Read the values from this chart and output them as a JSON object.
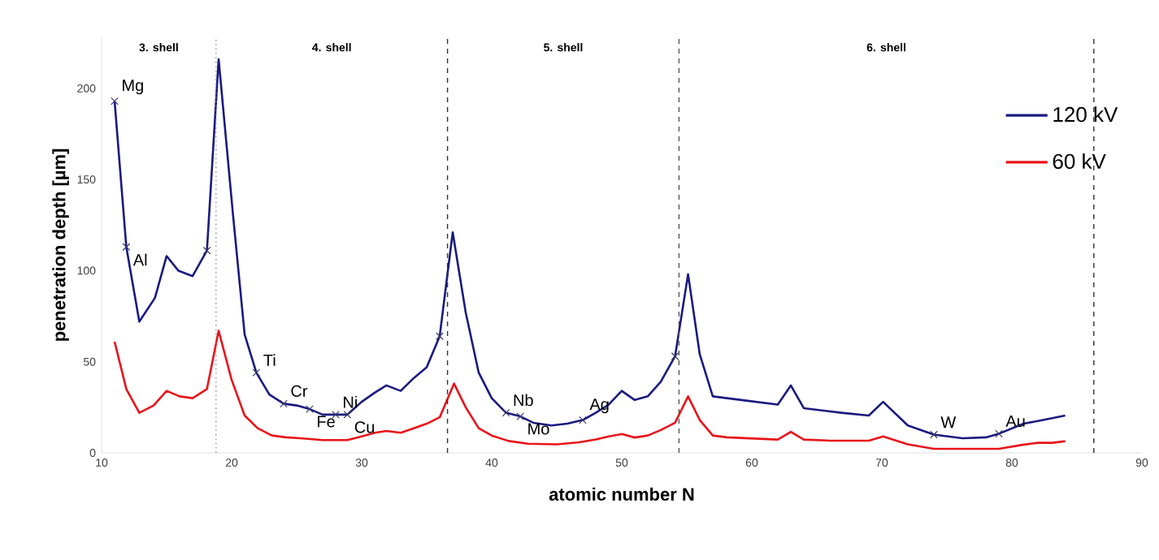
{
  "chart_data": {
    "type": "line",
    "xlabel": "atomic number N",
    "ylabel": "penetration depth  [µm]",
    "xlim": [
      10,
      90
    ],
    "xticks": [
      10,
      20,
      30,
      40,
      50,
      60,
      70,
      80,
      90
    ],
    "ylim": [
      0,
      228
    ],
    "yticks": [
      0,
      50,
      100,
      150,
      200
    ],
    "legend": "top right",
    "marker": "none",
    "line_style": "solid",
    "series": [
      {
        "name": "120 kV",
        "color": "#1a1a80",
        "x": [
          11,
          11.9,
          12.9,
          14.1,
          15,
          15.9,
          17,
          18.1,
          19,
          20.1,
          21,
          21.9,
          22.9,
          24,
          25,
          26,
          27,
          28,
          28.9,
          30,
          31,
          31.9,
          33,
          34,
          35,
          36,
          37,
          38,
          39,
          40,
          41.1,
          42.2,
          43.2,
          44.6,
          45.8,
          47,
          48,
          49,
          50,
          51,
          52,
          53,
          54.1,
          55.1,
          56,
          57,
          58.1,
          59.2,
          62,
          63,
          64,
          66.9,
          69,
          70.1,
          72,
          74,
          76.2,
          78,
          79,
          80.9,
          82,
          83.1,
          84.1
        ],
        "values": [
          193,
          113,
          72,
          85,
          108,
          100,
          97,
          111,
          216,
          131,
          65,
          44,
          32,
          27,
          26,
          24,
          21,
          21,
          21,
          28,
          33,
          37,
          34,
          41,
          47,
          64,
          121,
          77,
          44,
          30,
          22,
          20,
          16.5,
          15,
          16,
          18,
          22,
          26.5,
          34,
          29,
          31,
          39,
          53,
          98,
          54,
          31,
          30,
          29,
          26.5,
          37,
          24.5,
          22,
          20.5,
          28,
          15,
          10,
          8,
          8.5,
          10.5,
          16,
          17.5,
          19,
          20.5
        ]
      },
      {
        "name": "60 kV",
        "color": "#e8141a",
        "x": [
          11,
          11.9,
          12.9,
          14,
          15,
          16,
          17,
          18.1,
          19,
          20,
          21,
          22,
          23.1,
          24.2,
          25.3,
          27,
          28.9,
          30,
          31,
          31.9,
          33,
          34,
          35,
          36,
          37.1,
          38,
          39,
          40,
          41.3,
          42.8,
          45,
          46.7,
          48,
          49,
          50,
          51,
          52,
          53,
          54.1,
          55.1,
          56,
          57,
          58.1,
          62,
          63,
          64,
          66,
          69,
          70.1,
          72,
          74,
          76.2,
          79,
          80.9,
          82,
          83.1,
          84.1
        ],
        "values": [
          61,
          35,
          22,
          26,
          34,
          31,
          30,
          35,
          67,
          40,
          20.5,
          13.5,
          9.5,
          8.5,
          8,
          7,
          7,
          9,
          11,
          12,
          11,
          13.5,
          16,
          19.5,
          38,
          25,
          13.5,
          9.5,
          6.5,
          5,
          4.7,
          5.8,
          7.3,
          9,
          10.3,
          8.4,
          9.5,
          12.5,
          16.5,
          31,
          18,
          9.5,
          8.5,
          7.3,
          11.5,
          7.3,
          6.7,
          6.7,
          9,
          4.7,
          2.2,
          2.2,
          2.2,
          4.5,
          5.5,
          5.5,
          6.4
        ]
      },
      {
        "type": "scatter",
        "marker": "cross",
        "color": "#3a3a6a",
        "x": [
          11,
          11.9,
          18.1,
          21.9,
          24,
          26,
          28,
          28.9,
          36,
          41.1,
          42.2,
          47,
          54.1,
          74,
          79
        ],
        "values": [
          193,
          113,
          111,
          44,
          27,
          24,
          21,
          21,
          64,
          22,
          20,
          18,
          53,
          10,
          10.5
        ]
      }
    ],
    "ref_lines": [
      {
        "axis": "x",
        "value": 18.8,
        "color": "#888888",
        "line_style": "dotted"
      },
      {
        "axis": "x",
        "value": 36.6,
        "color": "#333333",
        "line_style": "dashed"
      },
      {
        "axis": "x",
        "value": 54.4,
        "color": "#555555",
        "line_style": "dashed"
      },
      {
        "axis": "x",
        "value": 86.3,
        "color": "#333333",
        "line_style": "dashed"
      }
    ],
    "annotations": [
      "3. shell",
      "4. shell",
      "5. shell",
      "6. shell",
      {
        "text": "Mg",
        "x": 11,
        "y": 193
      },
      {
        "text": "Al",
        "x": 11.9,
        "y": 113
      },
      {
        "text": "Ti",
        "x": 21.9,
        "y": 44
      },
      {
        "text": "Cr",
        "x": 24,
        "y": 27
      },
      {
        "text": "Fe",
        "x": 26,
        "y": 24
      },
      {
        "text": "Ni",
        "x": 28,
        "y": 21
      },
      {
        "text": "Cu",
        "x": 28.9,
        "y": 21
      },
      {
        "text": "Nb",
        "x": 41.1,
        "y": 22
      },
      {
        "text": "Mo",
        "x": 42.2,
        "y": 20
      },
      {
        "text": "Ag",
        "x": 47,
        "y": 18
      },
      {
        "text": "W",
        "x": 74,
        "y": 10
      },
      {
        "text": "Au",
        "x": 79,
        "y": 10.5
      }
    ]
  }
}
